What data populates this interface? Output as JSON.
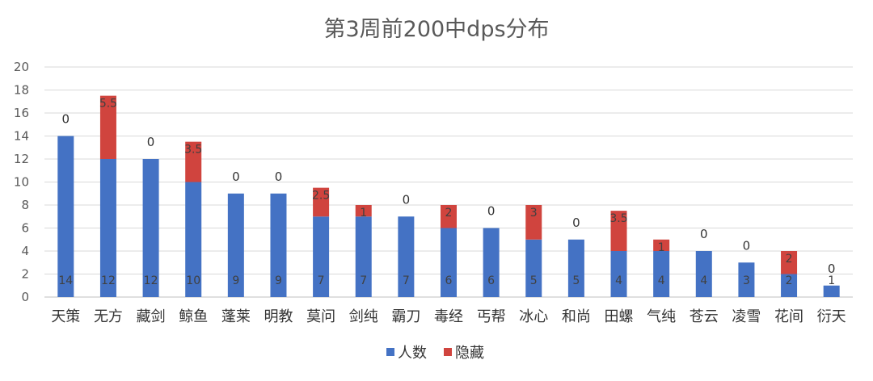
{
  "chart_data": {
    "type": "bar",
    "stacked": true,
    "title": "第3周前200中dps分布",
    "xlabel": "",
    "ylabel": "",
    "ylim": [
      0,
      20
    ],
    "yticks": [
      0,
      2,
      4,
      6,
      8,
      10,
      12,
      14,
      16,
      18,
      20
    ],
    "grid": true,
    "legend_position": "bottom",
    "categories": [
      "天策",
      "无方",
      "藏剑",
      "鲸鱼",
      "蓬莱",
      "明教",
      "莫问",
      "剑纯",
      "霸刀",
      "毒经",
      "丐帮",
      "冰心",
      "和尚",
      "田螺",
      "气纯",
      "苍云",
      "凌雪",
      "花间",
      "衍天"
    ],
    "series": [
      {
        "name": "人数",
        "color": "#4472c4",
        "values": [
          14,
          12,
          12,
          10,
          9,
          9,
          7,
          7,
          7,
          6,
          6,
          5,
          5,
          4,
          4,
          4,
          3,
          2,
          1
        ]
      },
      {
        "name": "隐藏",
        "color": "#d0443e",
        "values": [
          0,
          5.5,
          0,
          3.5,
          0,
          0,
          2.5,
          1,
          0,
          2,
          0,
          3,
          0,
          3.5,
          1,
          0,
          0,
          2,
          0
        ]
      }
    ]
  }
}
